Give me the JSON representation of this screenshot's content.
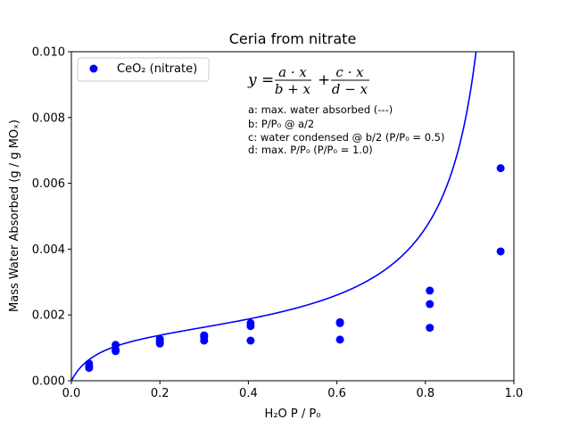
{
  "chart_data": {
    "type": "scatter",
    "title": "Ceria from nitrate",
    "xlabel": "H₂O P / P₀",
    "ylabel": "Mass Water Absorbed (g / g MOₓ)",
    "xlim": [
      0.0,
      1.0
    ],
    "ylim": [
      0.0,
      0.01
    ],
    "xticks": [
      "0.0",
      "0.2",
      "0.4",
      "0.6",
      "0.8",
      "1.0"
    ],
    "yticks": [
      "0.000",
      "0.002",
      "0.004",
      "0.006",
      "0.008",
      "0.010"
    ],
    "grid": false,
    "legend_position": "top-left",
    "series": [
      {
        "name": "CeO₂ (nitrate)",
        "marker": "circle",
        "color": "#0000ff",
        "x": [
          0.04,
          0.04,
          0.04,
          0.1,
          0.1,
          0.1,
          0.2,
          0.2,
          0.2,
          0.3,
          0.3,
          0.3,
          0.405,
          0.405,
          0.405,
          0.607,
          0.607,
          0.607,
          0.81,
          0.81,
          0.81,
          0.97,
          0.97
        ],
        "y": [
          0.00052,
          0.00045,
          0.00039,
          0.00109,
          0.00094,
          0.0009,
          0.00127,
          0.00119,
          0.00113,
          0.00138,
          0.00133,
          0.00122,
          0.00175,
          0.00166,
          0.00122,
          0.00178,
          0.00175,
          0.00125,
          0.00274,
          0.00233,
          0.00161,
          0.00646,
          0.00393
        ]
      }
    ],
    "fit_curve": {
      "color": "#0000ff",
      "a": 0.00155,
      "b": 0.062,
      "c": 0.0008,
      "d": 1.0
    },
    "equation": {
      "lhs": "y =",
      "term1_num": "a · x",
      "term1_den": "b + x",
      "plus": "+",
      "term2_num": "c · x",
      "term2_den": "d − x"
    },
    "annotations": [
      "a: max. water absorbed (---)",
      "b: P/P₀ @ a/2",
      "c: water condensed @ b/2 (P/P₀ = 0.5)",
      "d: max. P/P₀ (P/P₀ = 1.0)"
    ]
  }
}
